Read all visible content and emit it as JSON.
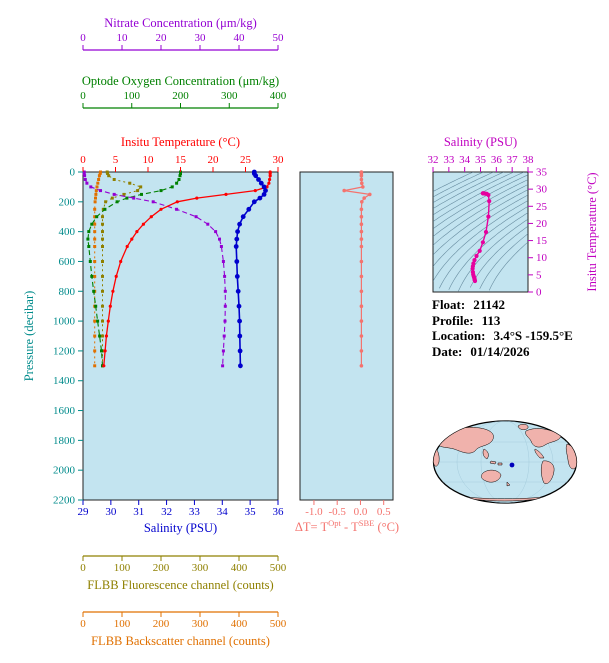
{
  "colors": {
    "nitrate": "#9400d3",
    "oxygen": "#008000",
    "temperature": "#ff0000",
    "pressure": "#008b8b",
    "salinity": "#0000cd",
    "fluorescence": "#8f8000",
    "backscatter": "#e07000",
    "delta": "#f4736e",
    "ts_axis": "#c000c0",
    "ts_marker": "#e6009e",
    "plot_bg": "#c3e4f0",
    "map_ocean": "#c3e4f0",
    "map_land": "#f0b2ac",
    "float_marker": "#0000bb"
  },
  "axes": {
    "nitrate": {
      "title": "Nitrate Concentration (μm/kg)",
      "range": [
        0,
        50
      ],
      "ticks": [
        "0",
        "10",
        "20",
        "30",
        "40",
        "50"
      ]
    },
    "oxygen": {
      "title": "Optode Oxygen Concentration (μm/kg)",
      "range": [
        0,
        400
      ],
      "ticks": [
        "0",
        "100",
        "200",
        "300",
        "400"
      ]
    },
    "temperature": {
      "title": "Insitu Temperature (°C)",
      "range": [
        0,
        30
      ],
      "ticks": [
        "0",
        "5",
        "10",
        "15",
        "20",
        "25",
        "30"
      ]
    },
    "pressure": {
      "title": "Pressure (decibar)",
      "range": [
        0,
        2200
      ],
      "ticks": [
        "0",
        "200",
        "400",
        "600",
        "800",
        "1000",
        "1200",
        "1400",
        "1600",
        "1800",
        "2000",
        "2200"
      ]
    },
    "salinity": {
      "title": "Salinity (PSU)",
      "range": [
        29,
        36
      ],
      "ticks": [
        "29",
        "30",
        "31",
        "32",
        "33",
        "34",
        "35",
        "36"
      ]
    },
    "fluorescence": {
      "title": "FLBB Fluorescence channel (counts)",
      "range": [
        0,
        500
      ],
      "ticks": [
        "0",
        "100",
        "200",
        "300",
        "400",
        "500"
      ]
    },
    "backscatter": {
      "title": "FLBB Backscatter channel (counts)",
      "range": [
        0,
        500
      ],
      "ticks": [
        "0",
        "100",
        "200",
        "300",
        "400",
        "500"
      ]
    },
    "delta": {
      "title_parts": {
        "p1": "ΔT= T",
        "s1": "Opt",
        "p2": " - T",
        "s2": "SBE",
        "p3": " (°C)"
      },
      "range": [
        -1.3,
        0.7
      ],
      "ticks": [
        "-1.0",
        "-0.5",
        "0.0",
        "0.5"
      ]
    },
    "ts_salinity": {
      "title": "Salinity (PSU)",
      "range": [
        32,
        38
      ],
      "ticks": [
        "32",
        "33",
        "34",
        "35",
        "36",
        "37",
        "38"
      ]
    },
    "ts_temperature": {
      "title": "Insitu Temperature (°C)",
      "range": [
        0,
        35
      ],
      "ticks": [
        "0",
        "5",
        "10",
        "15",
        "20",
        "25",
        "30",
        "35"
      ]
    }
  },
  "info": {
    "float_label": "Float:",
    "float_value": "21142",
    "profile_label": "Profile:",
    "profile_value": "113",
    "location_label": "Location:",
    "location_value": "3.4°S -159.5°E",
    "date_label": "Date:",
    "date_value": "01/14/2026"
  },
  "chart_data": [
    {
      "id": "main-profile",
      "type": "line",
      "ylabel": "Pressure (decibar)",
      "ylim": [
        0,
        2200
      ],
      "pressure_dbar": [
        0,
        10,
        25,
        50,
        75,
        100,
        125,
        150,
        175,
        200,
        250,
        300,
        350,
        400,
        450,
        500,
        600,
        700,
        800,
        900,
        1000,
        1100,
        1200,
        1300
      ],
      "series": [
        {
          "name": "fluorescence",
          "axis": "fluorescence",
          "units": "counts",
          "values": [
            62,
            63,
            66,
            80,
            120,
            148,
            140,
            105,
            75,
            58,
            52,
            50,
            50,
            50,
            50,
            50,
            50,
            50,
            50,
            50,
            50,
            50,
            50,
            50
          ]
        },
        {
          "name": "backscatter",
          "axis": "backscatter",
          "units": "counts",
          "values": [
            45,
            44,
            42,
            40,
            38,
            36,
            34,
            33,
            32,
            31,
            30,
            30,
            30,
            30,
            30,
            30,
            30,
            30,
            30,
            30,
            30,
            30,
            30,
            30
          ]
        },
        {
          "name": "oxygen",
          "axis": "oxygen",
          "units": "μm/kg",
          "values": [
            200,
            200,
            199,
            197,
            192,
            183,
            160,
            120,
            90,
            70,
            45,
            28,
            18,
            12,
            10,
            12,
            15,
            18,
            22,
            26,
            30,
            34,
            38,
            40
          ]
        },
        {
          "name": "nitrate",
          "axis": "nitrate",
          "units": "μm/kg",
          "values": [
            0.3,
            0.3,
            0.4,
            0.6,
            1.0,
            2.0,
            4.5,
            8.0,
            13.0,
            18.0,
            24.0,
            29.0,
            32.0,
            34.0,
            35.0,
            35.5,
            36.0,
            36.3,
            36.5,
            36.5,
            36.4,
            36.2,
            36.0,
            35.8
          ]
        },
        {
          "name": "temperature",
          "axis": "temperature",
          "units": "°C",
          "values": [
            28.8,
            28.8,
            28.8,
            28.7,
            28.6,
            28.3,
            26.5,
            22.0,
            17.5,
            14.5,
            12.0,
            10.5,
            9.3,
            8.3,
            7.5,
            6.8,
            5.8,
            5.1,
            4.6,
            4.2,
            3.9,
            3.6,
            3.4,
            3.2
          ]
        },
        {
          "name": "salinity",
          "axis": "salinity",
          "units": "PSU",
          "values": [
            35.15,
            35.15,
            35.2,
            35.3,
            35.4,
            35.5,
            35.55,
            35.5,
            35.35,
            35.15,
            34.95,
            34.75,
            34.62,
            34.55,
            34.52,
            34.5,
            34.52,
            34.54,
            34.57,
            34.6,
            34.62,
            34.63,
            34.64,
            34.65
          ]
        }
      ]
    },
    {
      "id": "delta-t",
      "type": "line",
      "xlabel": "ΔT= TOpt - TSBE (°C)",
      "xlim": [
        -1.0,
        0.5
      ],
      "pressure_dbar": [
        0,
        10,
        25,
        50,
        75,
        100,
        125,
        150,
        175,
        200,
        250,
        300,
        350,
        400,
        450,
        500,
        600,
        700,
        800,
        900,
        1000,
        1100,
        1200,
        1300
      ],
      "values": [
        0.02,
        0.02,
        0.02,
        0.02,
        0.03,
        0.05,
        -0.35,
        0.2,
        0.08,
        0.03,
        0.02,
        0.02,
        0.02,
        0.02,
        0.02,
        0.02,
        0.02,
        0.02,
        0.02,
        0.02,
        0.02,
        0.02,
        0.02,
        0.02
      ]
    },
    {
      "id": "ts-diagram",
      "type": "scatter",
      "title": "Salinity (PSU) vs Insitu Temperature (°C) with isopycnal contours",
      "xlim": [
        32,
        38
      ],
      "ylim": [
        0,
        35
      ],
      "salinity_psu": [
        35.15,
        35.15,
        35.2,
        35.3,
        35.4,
        35.5,
        35.55,
        35.5,
        35.35,
        35.15,
        34.95,
        34.75,
        34.62,
        34.55,
        34.52,
        34.5,
        34.52,
        34.54,
        34.57,
        34.6,
        34.62,
        34.63,
        34.64,
        34.65
      ],
      "temperature_c": [
        28.8,
        28.8,
        28.8,
        28.7,
        28.6,
        28.3,
        26.5,
        22.0,
        17.5,
        14.5,
        12.0,
        10.5,
        9.3,
        8.3,
        7.5,
        6.8,
        5.8,
        5.1,
        4.6,
        4.2,
        3.9,
        3.6,
        3.4,
        3.2
      ]
    }
  ]
}
